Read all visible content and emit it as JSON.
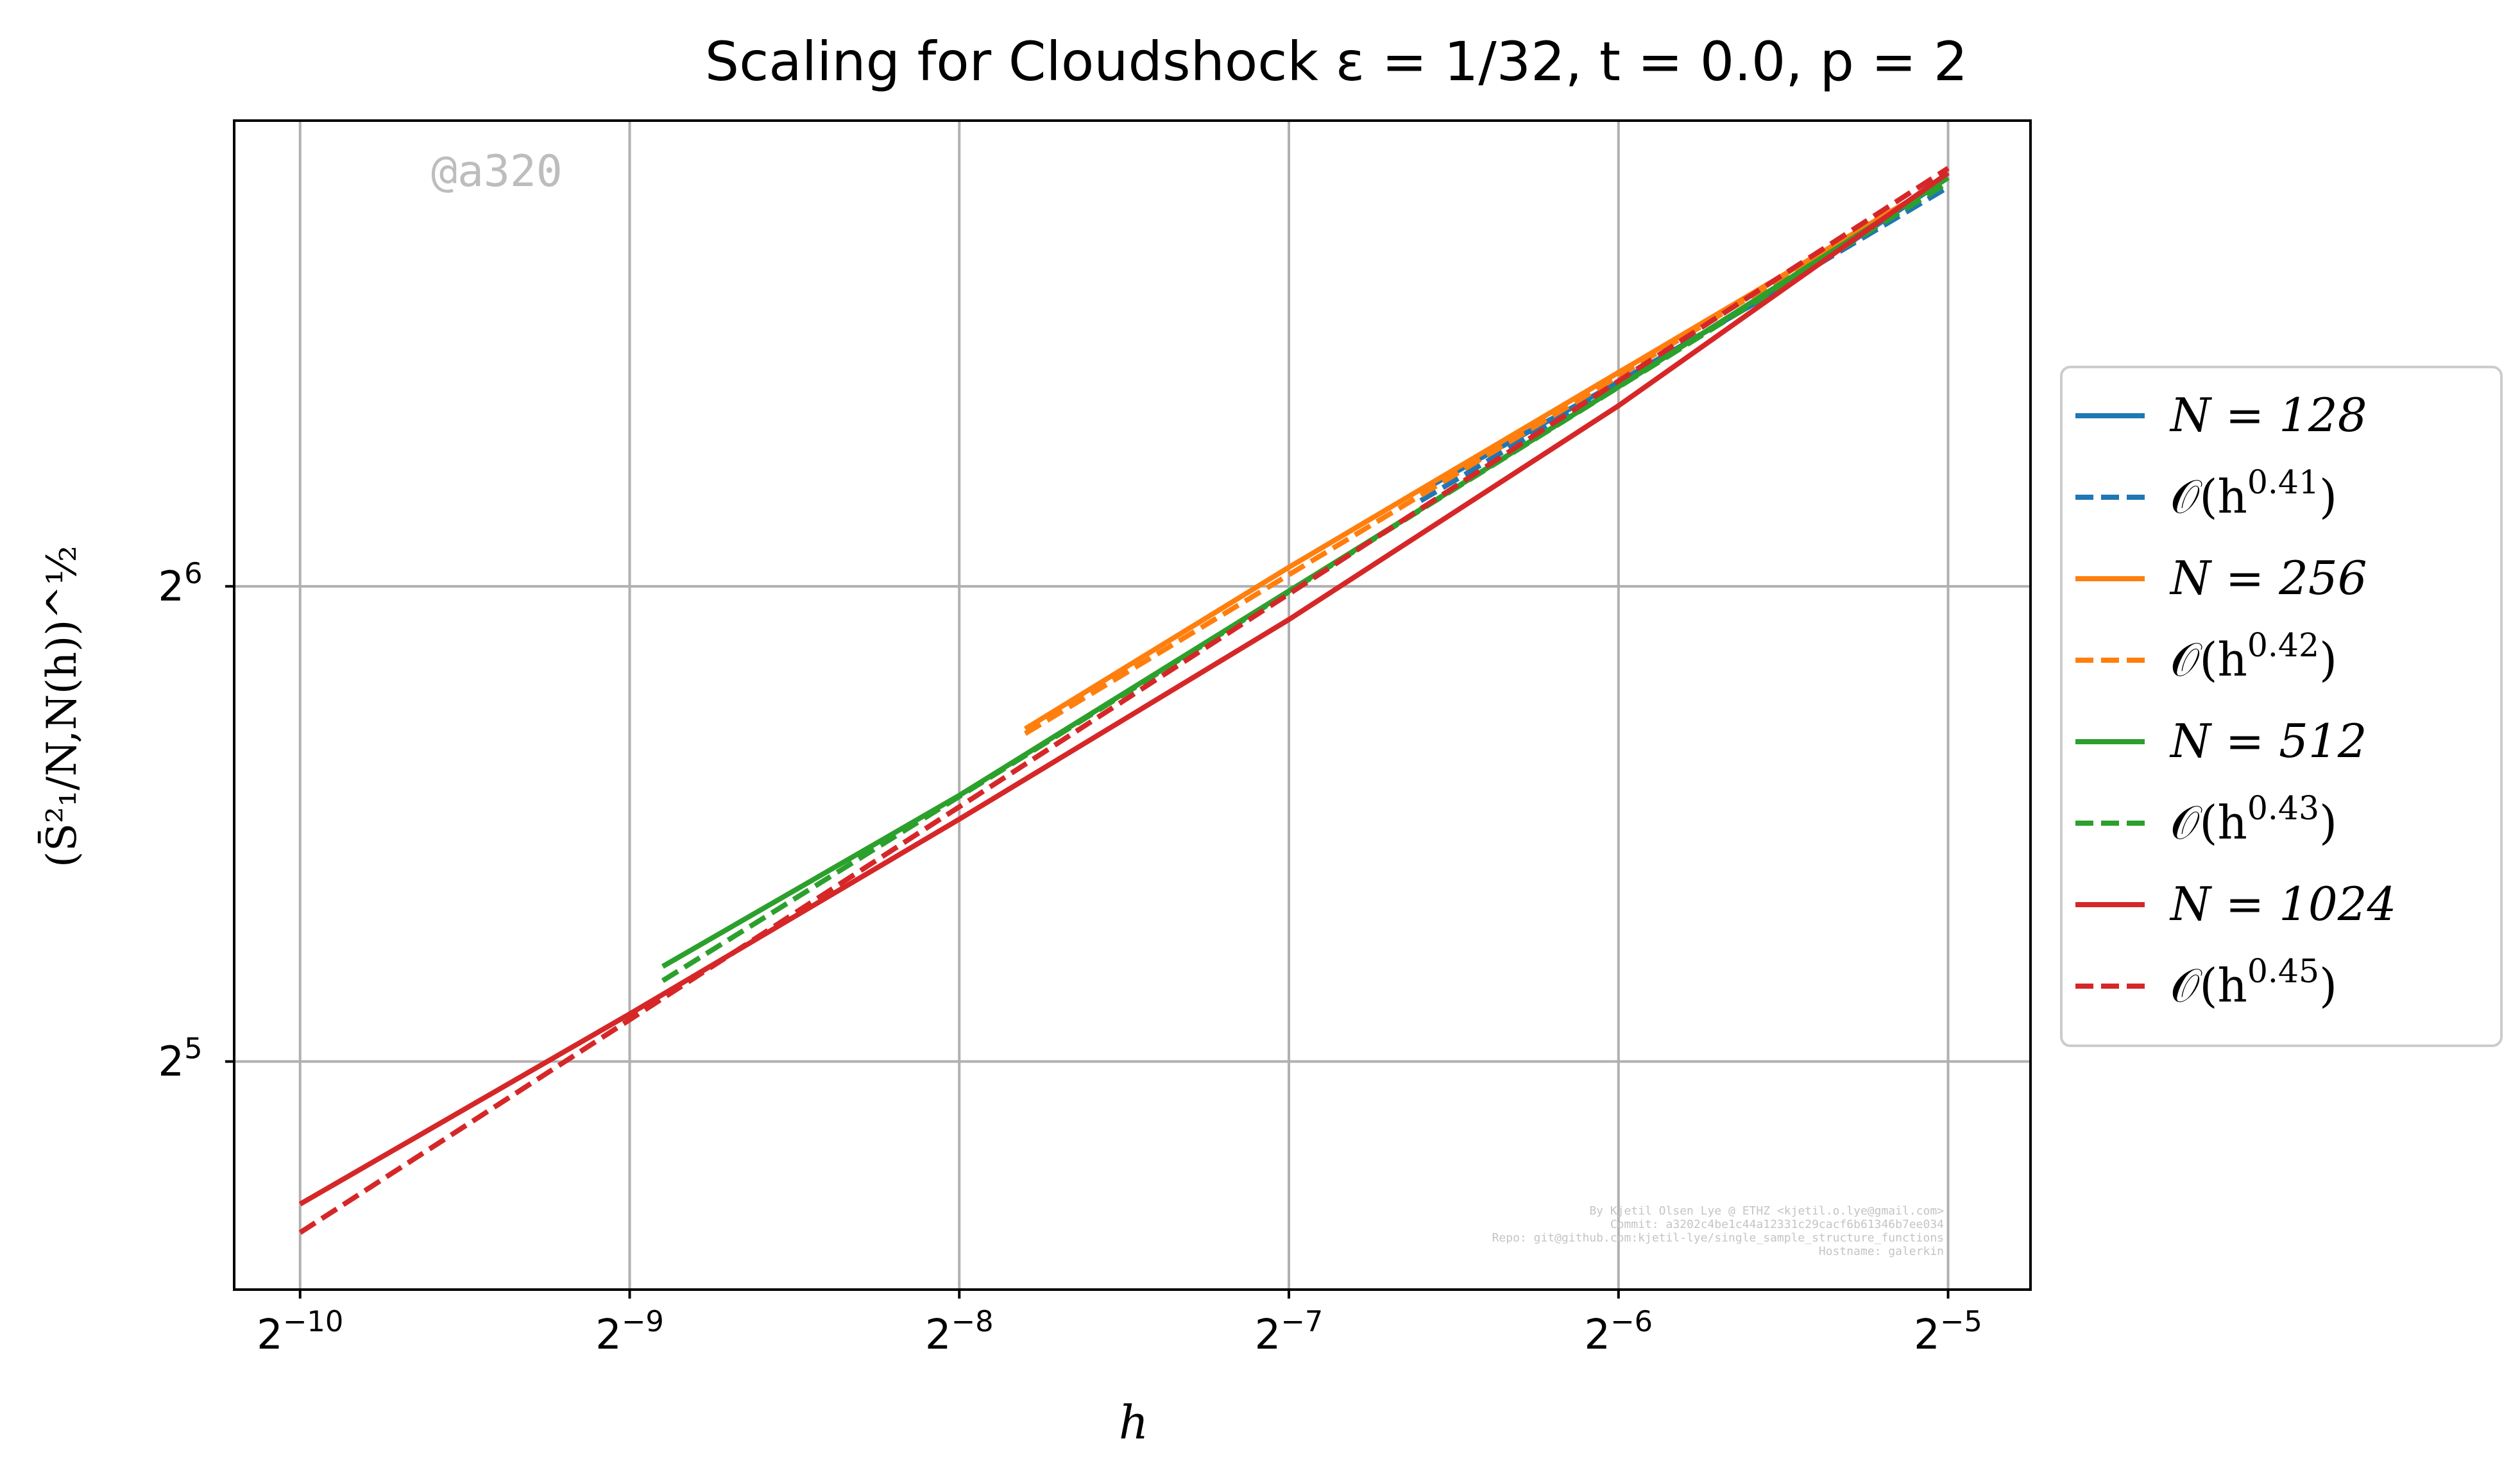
{
  "chart_data": {
    "type": "line",
    "title": "Scaling for Cloudshock ε = 1/32, t = 0.0, p = 2",
    "xlabel": "h",
    "ylabel": "(S̄²₁/N,N(h))^½",
    "xscale": "log2",
    "yscale": "log2",
    "xlim_log2": [
      -10.2,
      -4.75
    ],
    "ylim_log2": [
      4.52,
      6.98
    ],
    "x_ticks": [
      {
        "exp": -10,
        "label": "2",
        "sup": "−10"
      },
      {
        "exp": -9,
        "label": "2",
        "sup": "−9"
      },
      {
        "exp": -8,
        "label": "2",
        "sup": "−8"
      },
      {
        "exp": -7,
        "label": "2",
        "sup": "−7"
      },
      {
        "exp": -6,
        "label": "2",
        "sup": "−6"
      },
      {
        "exp": -5,
        "label": "2",
        "sup": "−5"
      }
    ],
    "y_ticks": [
      {
        "exp": 5,
        "label": "2",
        "sup": "5"
      },
      {
        "exp": 6,
        "label": "2",
        "sup": "6"
      }
    ],
    "grid": true,
    "legend_position": "right, outside plot",
    "series": [
      {
        "name": "N = 128",
        "legend_main": "N = 128",
        "color": "#1f77b4",
        "style": "solid",
        "points": [
          [
            -6.6,
            6.2
          ],
          [
            -6.0,
            6.43
          ],
          [
            -5.5,
            6.63
          ],
          [
            -5.0,
            6.86
          ]
        ]
      },
      {
        "name": "O(h^0.41)",
        "legend_main": "𝒪(h",
        "legend_sup": "0.41",
        "legend_end": ")",
        "color": "#1f77b4",
        "style": "dashed",
        "points": [
          [
            -6.6,
            6.18
          ],
          [
            -5.0,
            6.84
          ]
        ]
      },
      {
        "name": "N = 256",
        "legend_main": "N = 256",
        "color": "#ff7f0e",
        "style": "solid",
        "points": [
          [
            -7.8,
            5.7
          ],
          [
            -7.0,
            6.04
          ],
          [
            -6.0,
            6.45
          ],
          [
            -5.0,
            6.86
          ]
        ]
      },
      {
        "name": "O(h^0.42)",
        "legend_main": "𝒪(h",
        "legend_sup": "0.42",
        "legend_end": ")",
        "color": "#ff7f0e",
        "style": "dashed",
        "points": [
          [
            -7.8,
            5.69
          ],
          [
            -5.0,
            6.86
          ]
        ]
      },
      {
        "name": "N = 512",
        "legend_main": "N = 512",
        "color": "#2ca02c",
        "style": "solid",
        "points": [
          [
            -8.9,
            5.2
          ],
          [
            -8.0,
            5.56
          ],
          [
            -7.0,
            5.99
          ],
          [
            -6.0,
            6.42
          ],
          [
            -5.0,
            6.86
          ]
        ]
      },
      {
        "name": "O(h^0.43)",
        "legend_main": "𝒪(h",
        "legend_sup": "0.43",
        "legend_end": ")",
        "color": "#2ca02c",
        "style": "dashed",
        "points": [
          [
            -8.9,
            5.17
          ],
          [
            -5.0,
            6.85
          ]
        ]
      },
      {
        "name": "N = 1024",
        "legend_main": "N = 1024",
        "color": "#d62728",
        "style": "solid",
        "points": [
          [
            -10.0,
            4.7
          ],
          [
            -9.0,
            5.1
          ],
          [
            -8.0,
            5.51
          ],
          [
            -7.0,
            5.93
          ],
          [
            -6.0,
            6.38
          ],
          [
            -5.0,
            6.87
          ]
        ]
      },
      {
        "name": "O(h^0.45)",
        "legend_main": "𝒪(h",
        "legend_sup": "0.45",
        "legend_end": ")",
        "color": "#d62728",
        "style": "dashed",
        "points": [
          [
            -10.0,
            4.64
          ],
          [
            -5.0,
            6.88
          ]
        ]
      }
    ]
  },
  "watermark_tag": "@a320",
  "footer_credits": [
    "By Kjetil Olsen Lye @ ETHZ <kjetil.o.lye@gmail.com>",
    "Commit: a3202c4be1c44a12331c29cacf6b61346b7ee034",
    "Repo: git@github.com:kjetil-lye/single_sample_structure_functions",
    "Hostname: galerkin"
  ]
}
